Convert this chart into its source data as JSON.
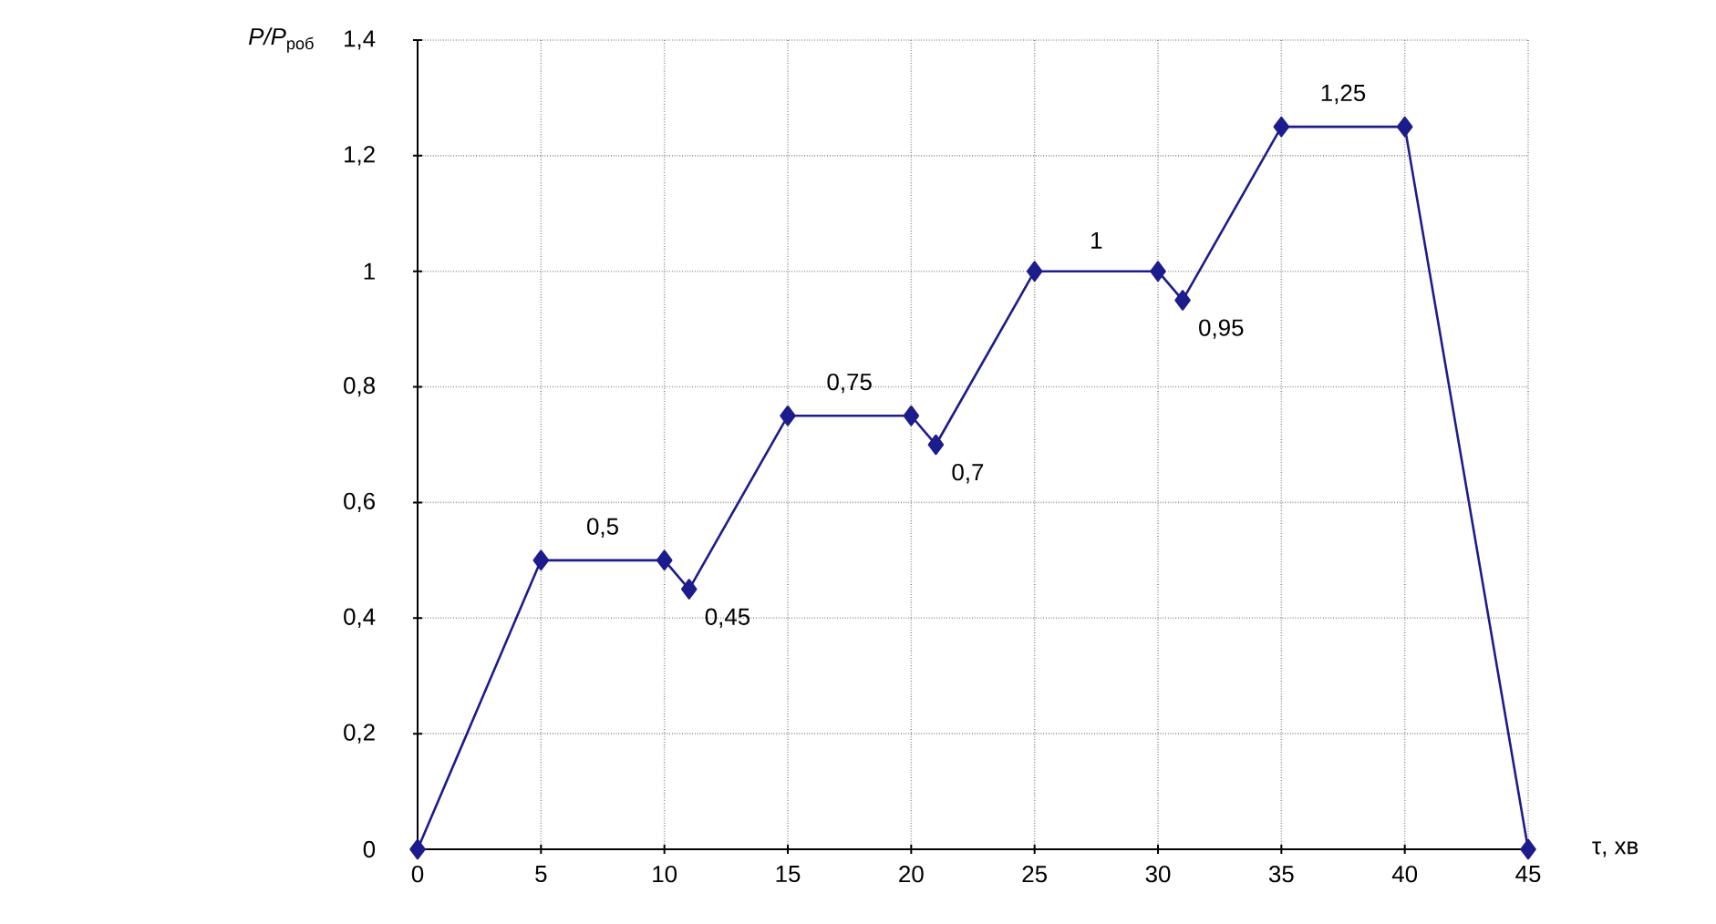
{
  "chart_data": {
    "type": "line",
    "ylabel": "*P/P*$_{роб}$",
    "xlabel": "τ, хв",
    "x": [
      0,
      5,
      10,
      11,
      15,
      20,
      21,
      25,
      30,
      31,
      35,
      40,
      45
    ],
    "series": [
      {
        "color": "#1c1c8c",
        "values": [
          0,
          0.5,
          0.5,
          0.45,
          0.75,
          0.75,
          0.7,
          1,
          1,
          0.95,
          1.25,
          1.25,
          0
        ]
      }
    ],
    "xlim": [
      0,
      45
    ],
    "xticks": [
      0,
      5,
      10,
      15,
      20,
      25,
      30,
      35,
      40,
      45
    ],
    "ylim": [
      0,
      1.4
    ],
    "yticks": [
      0,
      {
        "value": 0.2,
        "label": "0,2"
      },
      {
        "value": 0.4,
        "label": "0,4"
      },
      {
        "value": 0.6,
        "label": "0,6"
      },
      {
        "value": 0.8,
        "label": "0,8"
      },
      1,
      {
        "value": 1.2,
        "label": "1,2"
      },
      {
        "value": 1.4,
        "label": "1,4"
      }
    ],
    "grid": true,
    "marker": "diamond",
    "line_style": "solid",
    "annotations": [
      {
        "text": "0,5",
        "x": 7.5,
        "y": 0.5
      },
      {
        "text": "0,45",
        "x": 11,
        "y": 0.45
      },
      {
        "text": "0,75",
        "x": 17.5,
        "y": 0.75
      },
      {
        "text": "0,7",
        "x": 21,
        "y": 0.7
      },
      {
        "text": "1",
        "x": 27.5,
        "y": 1
      },
      {
        "text": "0,95",
        "x": 31,
        "y": 0.95
      },
      {
        "text": "1,25",
        "x": 37.5,
        "y": 1.25
      }
    ]
  }
}
